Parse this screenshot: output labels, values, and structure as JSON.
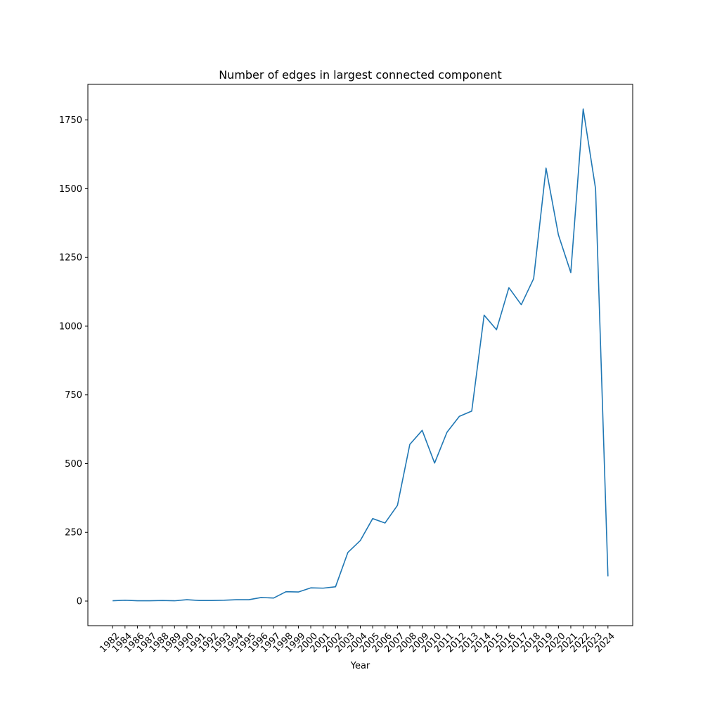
{
  "chart_data": {
    "type": "line",
    "title": "Number of edges in largest connected component",
    "xlabel": "Year",
    "ylabel": "",
    "x": [
      "1982",
      "1984",
      "1986",
      "1987",
      "1988",
      "1989",
      "1990",
      "1991",
      "1992",
      "1993",
      "1994",
      "1995",
      "1996",
      "1997",
      "1998",
      "1999",
      "2000",
      "2001",
      "2002",
      "2003",
      "2004",
      "2005",
      "2006",
      "2007",
      "2008",
      "2009",
      "2010",
      "2011",
      "2012",
      "2013",
      "2014",
      "2015",
      "2016",
      "2017",
      "2018",
      "2019",
      "2020",
      "2021",
      "2022",
      "2023",
      "2024"
    ],
    "series": [
      {
        "name": "",
        "color": "#1f77b4",
        "values": [
          1,
          3,
          1,
          1,
          2,
          1,
          5,
          2,
          2,
          3,
          5,
          5,
          13,
          11,
          34,
          33,
          48,
          47,
          52,
          177,
          220,
          300,
          284,
          348,
          570,
          621,
          502,
          614,
          672,
          691,
          1040,
          987,
          1140,
          1078,
          1173,
          1575,
          1332,
          1195,
          1790,
          1500,
          90
        ]
      }
    ],
    "yticks": [
      0,
      250,
      500,
      750,
      1000,
      1250,
      1500,
      1750
    ],
    "ylim": [
      -89.5,
      1879.6
    ],
    "grid": false,
    "legend": "none"
  }
}
